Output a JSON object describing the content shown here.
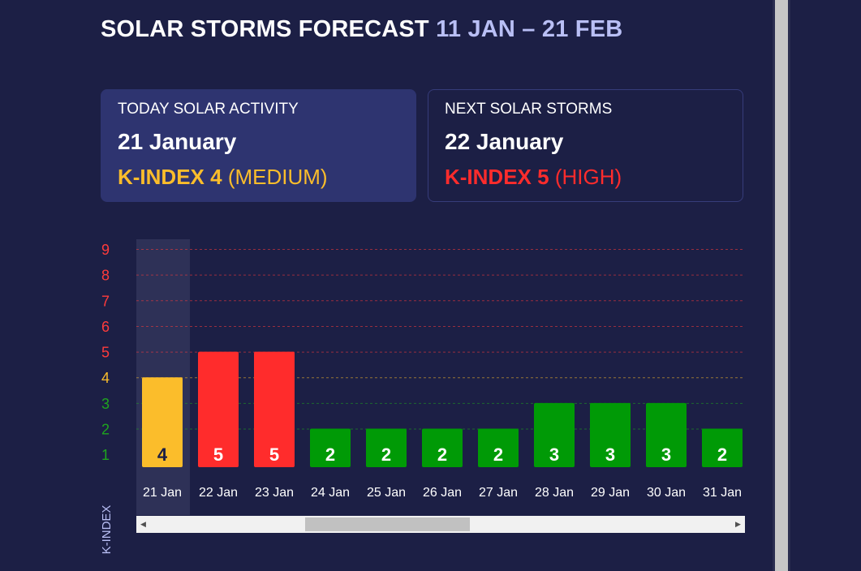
{
  "header": {
    "title": "SOLAR STORMS FORECAST",
    "range": "11 JAN – 21 FEB"
  },
  "today_card": {
    "label": "TODAY SOLAR ACTIVITY",
    "date": "21 January",
    "kindex_label": "K-INDEX 4",
    "level": "(MEDIUM)",
    "color": "#fbbd2b"
  },
  "next_card": {
    "label": "NEXT SOLAR STORMS",
    "date": "22 January",
    "kindex_label": "K-INDEX 5",
    "level": "(HIGH)",
    "color": "#ff2c2c"
  },
  "colors": {
    "low": "#009a06",
    "medium": "#fbbd2b",
    "high": "#ff2c2c",
    "low_tick": "#1ea51e",
    "high_tick": "#ff3b3b",
    "today_highlight": "#2e3157"
  },
  "chart_data": {
    "type": "bar",
    "ylabel": "K-INDEX",
    "ylim": [
      1,
      9
    ],
    "yticks": [
      1,
      2,
      3,
      4,
      5,
      6,
      7,
      8,
      9
    ],
    "grid": true,
    "highlight_category": "21 Jan",
    "categories": [
      "21 Jan",
      "22 Jan",
      "23 Jan",
      "24 Jan",
      "25 Jan",
      "26 Jan",
      "27 Jan",
      "28 Jan",
      "29 Jan",
      "30 Jan",
      "31 Jan"
    ],
    "values": [
      4,
      5,
      5,
      2,
      2,
      2,
      2,
      3,
      3,
      3,
      2
    ]
  }
}
